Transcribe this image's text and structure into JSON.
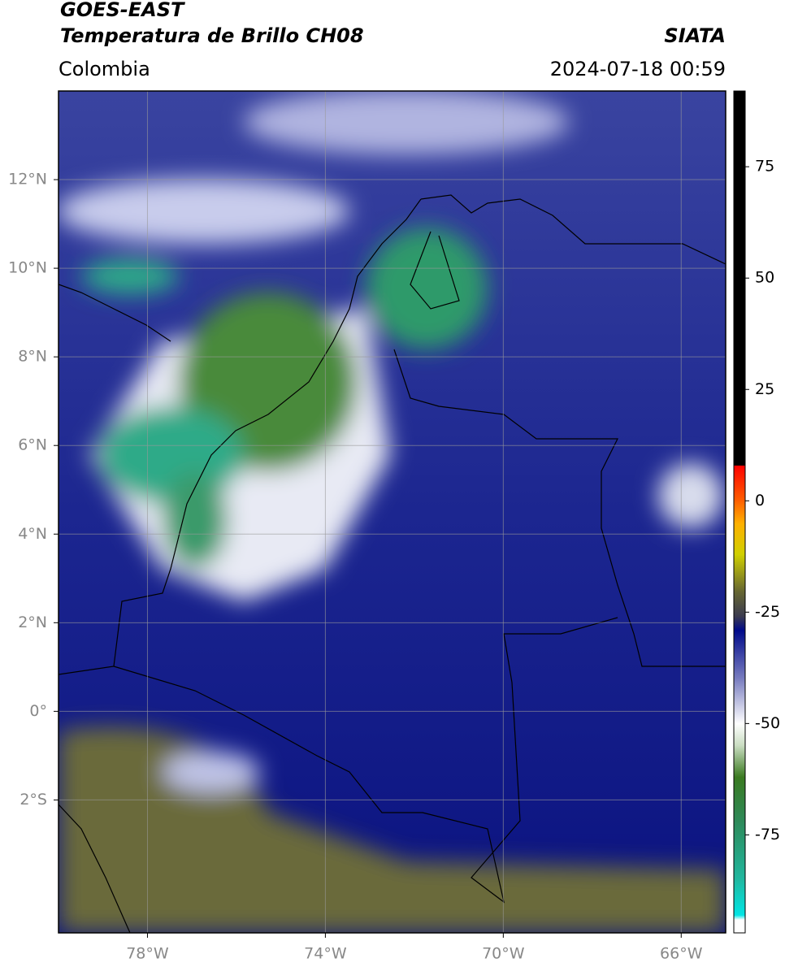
{
  "header": {
    "source": "GOES-EAST",
    "product": "Temperatura de Brillo CH08",
    "region": "Colombia",
    "agency": "SIATA",
    "datetime": "2024-07-18 00:59"
  },
  "chart_data": {
    "type": "map",
    "xlim": [
      -80,
      -65
    ],
    "ylim": [
      -5,
      14
    ],
    "xticks": [
      {
        "value": -78,
        "label": "78°W"
      },
      {
        "value": -74,
        "label": "74°W"
      },
      {
        "value": -70,
        "label": "70°W"
      },
      {
        "value": -66,
        "label": "66°W"
      }
    ],
    "yticks": [
      {
        "value": 12,
        "label": "12°N"
      },
      {
        "value": 10,
        "label": "10°N"
      },
      {
        "value": 8,
        "label": "8°N"
      },
      {
        "value": 6,
        "label": "6°N"
      },
      {
        "value": 4,
        "label": "4°N"
      },
      {
        "value": 2,
        "label": "2°N"
      },
      {
        "value": 0,
        "label": "0°"
      },
      {
        "value": -2,
        "label": "2°S"
      }
    ],
    "grid": true,
    "colorbar": {
      "lim": [
        -97,
        92
      ],
      "ticks": [
        75,
        50,
        25,
        0,
        -25,
        -50,
        -75
      ],
      "stops": [
        {
          "value": -97,
          "color": "#ffffff"
        },
        {
          "value": -94,
          "color": "#ffffff"
        },
        {
          "value": -93,
          "color": "#00e5e5"
        },
        {
          "value": -85,
          "color": "#20b8a0"
        },
        {
          "value": -72,
          "color": "#2e8a5a"
        },
        {
          "value": -62,
          "color": "#3a7a20"
        },
        {
          "value": -55,
          "color": "#c8dcc0"
        },
        {
          "value": -50,
          "color": "#ffffff"
        },
        {
          "value": -40,
          "color": "#7a7ec0"
        },
        {
          "value": -29,
          "color": "#000a8a"
        },
        {
          "value": -26,
          "color": "#3a3a50"
        },
        {
          "value": -20,
          "color": "#6a6a30"
        },
        {
          "value": -12,
          "color": "#d0d000"
        },
        {
          "value": -5,
          "color": "#ffb000"
        },
        {
          "value": 0,
          "color": "#ff6000"
        },
        {
          "value": 8,
          "color": "#ff0000"
        },
        {
          "value": 8.01,
          "color": "#000000"
        },
        {
          "value": 92,
          "color": "#000000"
        }
      ]
    }
  }
}
